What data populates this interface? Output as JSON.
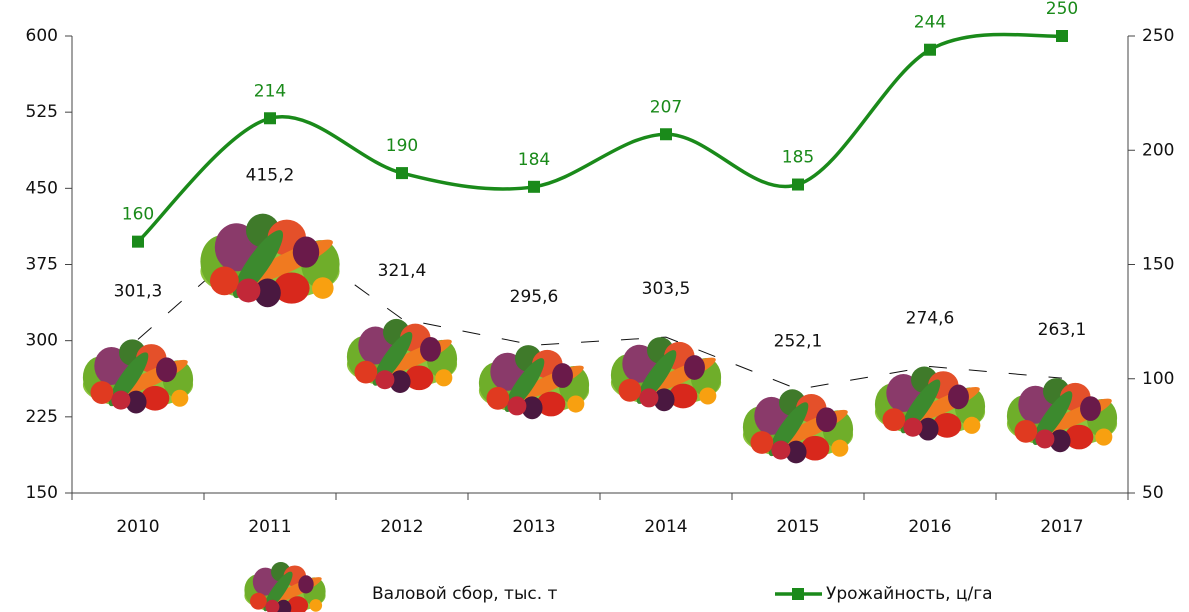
{
  "chart_data": {
    "type": "line",
    "categories": [
      "2010",
      "2011",
      "2012",
      "2013",
      "2014",
      "2015",
      "2016",
      "2017"
    ],
    "series": [
      {
        "name": "Валовой сбор, тыс. т",
        "color": "#111111",
        "values": [
          301.3,
          415.2,
          321.4,
          295.6,
          303.5,
          252.1,
          274.6,
          263.1
        ],
        "value_labels": [
          "301,3",
          "415,2",
          "321,4",
          "295,6",
          "303,5",
          "252,1",
          "274,6",
          "263,1"
        ]
      },
      {
        "name": "Урожайность, ц/га",
        "color": "#1a8a1a",
        "axis": "y2",
        "values": [
          160,
          214,
          190,
          184,
          207,
          185,
          244,
          250
        ]
      }
    ],
    "ylim": [
      150,
      600
    ],
    "yticks": [
      150,
      225,
      300,
      375,
      450,
      525,
      600
    ],
    "y2lim": [
      50,
      250
    ],
    "y2ticks": [
      50,
      100,
      150,
      200,
      250
    ]
  }
}
